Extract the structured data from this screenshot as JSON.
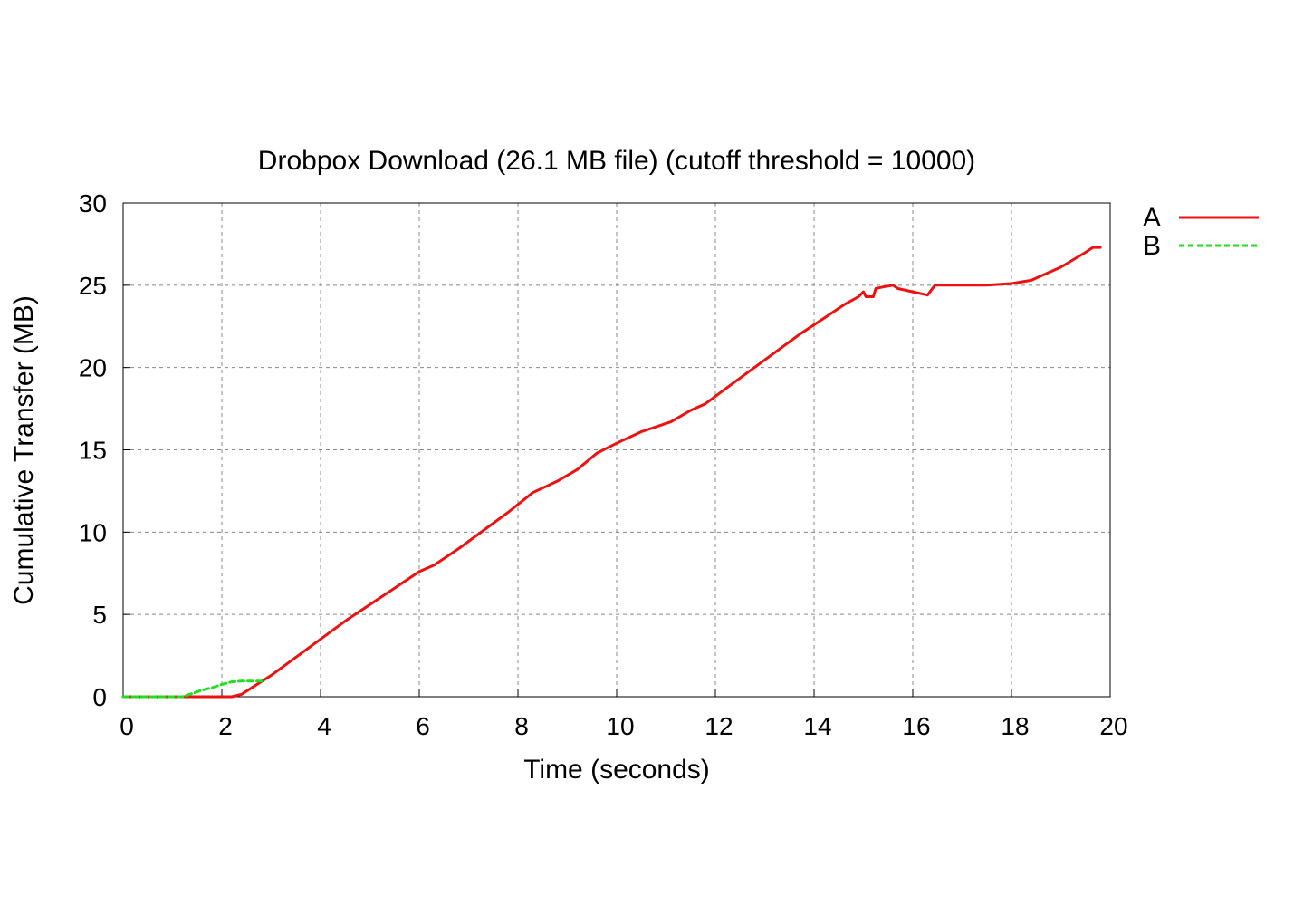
{
  "chart_data": {
    "type": "line",
    "title": "Drobpox Download (26.1 MB file) (cutoff threshold = 10000)",
    "xlabel": "Time (seconds)",
    "ylabel": "Cumulative Transfer (MB)",
    "xlim": [
      0,
      20
    ],
    "ylim": [
      0,
      30
    ],
    "xticks": [
      0,
      2,
      4,
      6,
      8,
      10,
      12,
      14,
      16,
      18,
      20
    ],
    "yticks": [
      0,
      5,
      10,
      15,
      20,
      25,
      30
    ],
    "grid": true,
    "legend_position": "top-right outside",
    "series": [
      {
        "name": "A",
        "color": "#ee1111",
        "style": "solid",
        "points": [
          [
            0,
            0
          ],
          [
            1.2,
            0
          ],
          [
            2.2,
            0
          ],
          [
            2.4,
            0.15
          ],
          [
            3.0,
            1.3
          ],
          [
            3.5,
            2.4
          ],
          [
            4.0,
            3.5
          ],
          [
            4.5,
            4.6
          ],
          [
            5.0,
            5.6
          ],
          [
            5.5,
            6.6
          ],
          [
            6.0,
            7.6
          ],
          [
            6.3,
            8.0
          ],
          [
            6.8,
            9.0
          ],
          [
            7.3,
            10.1
          ],
          [
            7.8,
            11.2
          ],
          [
            8.3,
            12.4
          ],
          [
            8.8,
            13.1
          ],
          [
            9.2,
            13.8
          ],
          [
            9.6,
            14.8
          ],
          [
            10.0,
            15.4
          ],
          [
            10.5,
            16.1
          ],
          [
            11.1,
            16.7
          ],
          [
            11.5,
            17.4
          ],
          [
            11.8,
            17.8
          ],
          [
            12.2,
            18.7
          ],
          [
            12.7,
            19.8
          ],
          [
            13.2,
            20.9
          ],
          [
            13.7,
            22.0
          ],
          [
            14.2,
            23.0
          ],
          [
            14.6,
            23.8
          ],
          [
            14.9,
            24.3
          ],
          [
            15.0,
            24.6
          ],
          [
            15.05,
            24.3
          ],
          [
            15.2,
            24.3
          ],
          [
            15.25,
            24.8
          ],
          [
            15.4,
            24.9
          ],
          [
            15.6,
            25.0
          ],
          [
            15.7,
            24.8
          ],
          [
            16.3,
            24.4
          ],
          [
            16.45,
            25.0
          ],
          [
            17.0,
            25.0
          ],
          [
            17.5,
            25.0
          ],
          [
            18.0,
            25.1
          ],
          [
            18.4,
            25.3
          ],
          [
            19.0,
            26.1
          ],
          [
            19.5,
            27.0
          ],
          [
            19.65,
            27.3
          ],
          [
            19.8,
            27.3
          ]
        ]
      },
      {
        "name": "B",
        "color": "#22dd22",
        "style": "dashed",
        "points": [
          [
            0,
            0
          ],
          [
            1.2,
            0
          ],
          [
            1.4,
            0.2
          ],
          [
            1.6,
            0.4
          ],
          [
            1.8,
            0.55
          ],
          [
            2.0,
            0.75
          ],
          [
            2.2,
            0.9
          ],
          [
            2.4,
            0.95
          ],
          [
            2.6,
            0.95
          ],
          [
            2.8,
            0.95
          ]
        ]
      }
    ]
  }
}
